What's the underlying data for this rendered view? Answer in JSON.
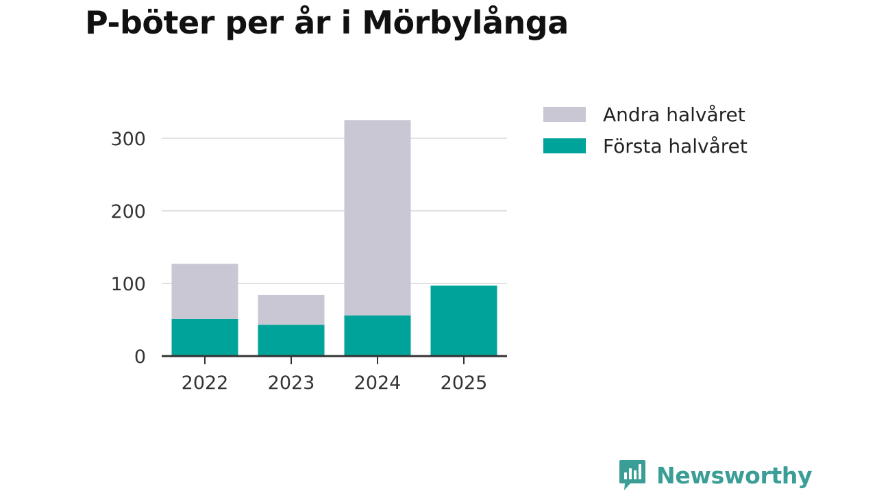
{
  "chart_data": {
    "type": "bar",
    "stacked": true,
    "title": "P-böter per år i Mörbylånga",
    "xlabel": "",
    "ylabel": "",
    "categories": [
      "2022",
      "2023",
      "2024",
      "2025"
    ],
    "series": [
      {
        "name": "Första halvåret",
        "color": "#00a39a",
        "values": [
          51,
          43,
          56,
          97
        ]
      },
      {
        "name": "Andra halvåret",
        "color": "#c8c7d3",
        "values": [
          76,
          41,
          269,
          0
        ]
      }
    ],
    "ylim": [
      0,
      330
    ],
    "yticks": [
      0,
      100,
      200,
      300
    ],
    "grid": true,
    "legend": {
      "placement": "right-top",
      "order": [
        "Andra halvåret",
        "Första halvåret"
      ]
    }
  },
  "brand": {
    "name": "Newsworthy",
    "color": "#3b9e96",
    "icon": "chat-bubble-bar-chart-icon"
  }
}
